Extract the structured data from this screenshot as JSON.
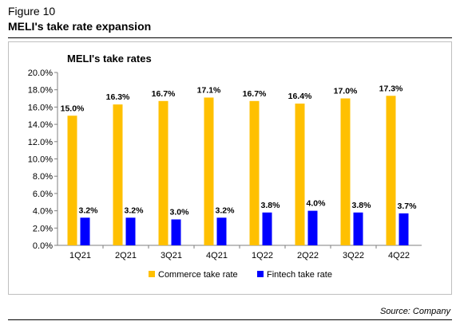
{
  "figure": {
    "label": "Figure 10",
    "title": "MELI's take rate expansion",
    "source": "Source: Company"
  },
  "chart_data": {
    "type": "bar",
    "title": "MELI's take rates",
    "categories": [
      "1Q21",
      "2Q21",
      "3Q21",
      "4Q21",
      "1Q22",
      "2Q22",
      "3Q22",
      "4Q22"
    ],
    "series": [
      {
        "name": "Commerce take rate",
        "values": [
          15.0,
          16.3,
          16.7,
          17.1,
          16.7,
          16.4,
          17.0,
          17.3
        ],
        "color": "#ffc000"
      },
      {
        "name": "Fintech take rate",
        "values": [
          3.2,
          3.2,
          3.0,
          3.2,
          3.8,
          4.0,
          3.8,
          3.7
        ],
        "color": "#0000ff"
      }
    ],
    "ylim": [
      0,
      20
    ],
    "ytick_step": 2,
    "ytick_format": "percent_1dp",
    "xlabel": "",
    "ylabel": "",
    "grid": false,
    "legend": "bottom-center"
  }
}
